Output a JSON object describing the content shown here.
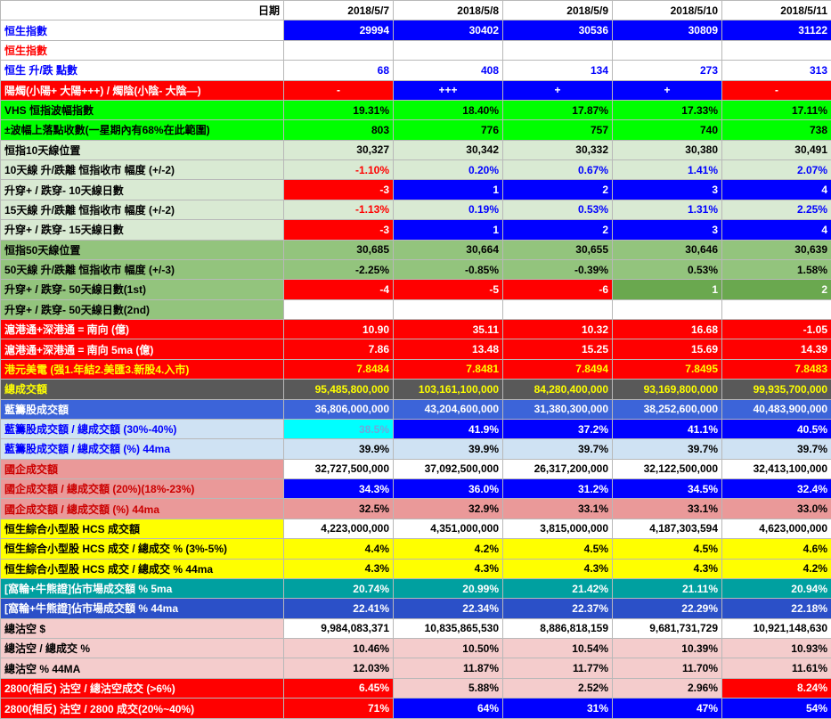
{
  "colors": {
    "white": "#ffffff",
    "black": "#000000",
    "blue": "#0000ff",
    "red": "#ff0000",
    "green": "#00ff00",
    "lgreen": "#d9ead3",
    "mgreen": "#93c47d",
    "dgreen": "#6aa84f",
    "yellow": "#ffff00",
    "gray": "#595959",
    "royal": "#3c64d9",
    "royal2": "#2b50c8",
    "lblue": "#cfe2f3",
    "cyan": "#00ffff",
    "grayblue": "#6fa8dc",
    "salmon": "#ea9999",
    "darkred": "#cc0000",
    "pink": "#f4cccc",
    "teal": "#00a0a0"
  },
  "rows": [
    {
      "name": "row-date",
      "label": "日期",
      "ls": {
        "bg": "white",
        "fg": "black",
        "align": "right"
      },
      "cs": {
        "bg": "white",
        "fg": "black"
      },
      "values": [
        "2018/5/7",
        "2018/5/8",
        "2018/5/9",
        "2018/5/10",
        "2018/5/11"
      ]
    },
    {
      "name": "row-hsi-index",
      "label": "恒生指數",
      "ls": {
        "bg": "white",
        "fg": "blue"
      },
      "cs": {
        "bg": "blue",
        "fg": "white"
      },
      "values": [
        "29994",
        "30402",
        "30536",
        "30809",
        "31122"
      ]
    },
    {
      "name": "row-hsi-index-2",
      "label": "恒生指數",
      "ls": {
        "bg": "white",
        "fg": "red"
      },
      "cs": {
        "bg": "white",
        "fg": "black"
      },
      "values": [
        "",
        "",
        "",
        "",
        ""
      ]
    },
    {
      "name": "row-hsi-change-points",
      "label": "恒生 升/跌 點數",
      "ls": {
        "bg": "white",
        "fg": "blue"
      },
      "cs": {
        "bg": "white",
        "fg": "blue"
      },
      "values": [
        "68",
        "408",
        "134",
        "273",
        "313"
      ]
    },
    {
      "name": "row-candle",
      "label": "陽燭(小陽+ 大陽+++) / 燭陰(小陰- 大陰—)",
      "ls": {
        "bg": "red",
        "fg": "white"
      },
      "cs": {
        "fg": "white",
        "align": "center"
      },
      "bgs": [
        "red",
        "blue",
        "blue",
        "blue",
        "red"
      ],
      "values": [
        "-",
        "+++",
        "+",
        "+",
        "-"
      ]
    },
    {
      "name": "row-vhs-volatility",
      "label": "VHS 恒指波幅指數",
      "ls": {
        "bg": "green",
        "fg": "black"
      },
      "cs": {
        "bg": "green",
        "fg": "black"
      },
      "values": [
        "19.31%",
        "18.40%",
        "17.87%",
        "17.33%",
        "17.11%"
      ]
    },
    {
      "name": "row-range-points",
      "label": "±波幅上落點收數(一星期內有68%在此範圍)",
      "ls": {
        "bg": "green",
        "fg": "black"
      },
      "cs": {
        "bg": "green",
        "fg": "black"
      },
      "values": [
        "803",
        "776",
        "757",
        "740",
        "738"
      ]
    },
    {
      "name": "row-ma10-position",
      "label": "恒指10天線位置",
      "ls": {
        "bg": "lgreen",
        "fg": "black"
      },
      "cs": {
        "bg": "lgreen",
        "fg": "black"
      },
      "values": [
        "30,327",
        "30,342",
        "30,332",
        "30,380",
        "30,491"
      ]
    },
    {
      "name": "row-ma10-gap",
      "label": "10天線 升/跌離 恒指收市 幅度 (+/-2)",
      "ls": {
        "bg": "lgreen",
        "fg": "black"
      },
      "cs": {
        "bg": "lgreen"
      },
      "fgs": [
        "red",
        "blue",
        "blue",
        "blue",
        "blue"
      ],
      "values": [
        "-1.10%",
        "0.20%",
        "0.67%",
        "1.41%",
        "2.07%"
      ]
    },
    {
      "name": "row-ma10-days",
      "label": "升穿+ / 跌穿- 10天線日數",
      "ls": {
        "bg": "lgreen",
        "fg": "black"
      },
      "cs": {
        "fg": "white"
      },
      "bgs": [
        "red",
        "blue",
        "blue",
        "blue",
        "blue"
      ],
      "values": [
        "-3",
        "1",
        "2",
        "3",
        "4"
      ]
    },
    {
      "name": "row-ma15-gap",
      "label": "15天線 升/跌離 恒指收市 幅度 (+/-2)",
      "ls": {
        "bg": "lgreen",
        "fg": "black"
      },
      "cs": {
        "bg": "lgreen"
      },
      "fgs": [
        "red",
        "blue",
        "blue",
        "blue",
        "blue"
      ],
      "values": [
        "-1.13%",
        "0.19%",
        "0.53%",
        "1.31%",
        "2.25%"
      ]
    },
    {
      "name": "row-ma15-days",
      "label": "升穿+ / 跌穿- 15天線日數",
      "ls": {
        "bg": "lgreen",
        "fg": "black"
      },
      "cs": {
        "fg": "white"
      },
      "bgs": [
        "red",
        "blue",
        "blue",
        "blue",
        "blue"
      ],
      "values": [
        "-3",
        "1",
        "2",
        "3",
        "4"
      ]
    },
    {
      "name": "row-ma50-position",
      "label": "恒指50天線位置",
      "ls": {
        "bg": "mgreen",
        "fg": "black"
      },
      "cs": {
        "bg": "mgreen",
        "fg": "black"
      },
      "values": [
        "30,685",
        "30,664",
        "30,655",
        "30,646",
        "30,639"
      ]
    },
    {
      "name": "row-ma50-gap",
      "label": "50天線 升/跌離 恒指收市 幅度 (+/-3)",
      "ls": {
        "bg": "mgreen",
        "fg": "black"
      },
      "cs": {
        "bg": "mgreen",
        "fg": "black"
      },
      "values": [
        "-2.25%",
        "-0.85%",
        "-0.39%",
        "0.53%",
        "1.58%"
      ]
    },
    {
      "name": "row-ma50-days-1st",
      "label": "升穿+ / 跌穿- 50天線日數(1st)",
      "ls": {
        "bg": "mgreen",
        "fg": "black"
      },
      "cs": {
        "fg": "white"
      },
      "bgs": [
        "red",
        "red",
        "red",
        "dgreen",
        "dgreen"
      ],
      "values": [
        "-4",
        "-5",
        "-6",
        "1",
        "2"
      ]
    },
    {
      "name": "row-ma50-days-2nd",
      "label": "升穿+ / 跌穿- 50天線日數(2nd)",
      "ls": {
        "bg": "mgreen",
        "fg": "black"
      },
      "cs": {
        "bg": "white",
        "fg": "black"
      },
      "values": [
        "",
        "",
        "",
        "",
        ""
      ]
    },
    {
      "name": "row-southbound",
      "label": "滬港通+深港通 = 南向 (億)",
      "ls": {
        "bg": "red",
        "fg": "white"
      },
      "cs": {
        "bg": "red",
        "fg": "white"
      },
      "values": [
        "10.90",
        "35.11",
        "10.32",
        "16.68",
        "-1.05"
      ]
    },
    {
      "name": "row-southbound-5ma",
      "label": "滬港通+深港通 = 南向 5ma (億)",
      "ls": {
        "bg": "red",
        "fg": "white"
      },
      "cs": {
        "bg": "red",
        "fg": "white"
      },
      "values": [
        "7.86",
        "13.48",
        "15.25",
        "15.69",
        "14.39"
      ]
    },
    {
      "name": "row-usdhkd",
      "label": "港元美電 (强1.年結2.美匯3.新股4.入市)",
      "ls": {
        "bg": "red",
        "fg": "yellow"
      },
      "cs": {
        "bg": "red",
        "fg": "yellow"
      },
      "values": [
        "7.8484",
        "7.8481",
        "7.8494",
        "7.8495",
        "7.8483"
      ]
    },
    {
      "name": "row-total-turnover",
      "label": "總成交額",
      "ls": {
        "bg": "gray",
        "fg": "yellow"
      },
      "cs": {
        "bg": "gray",
        "fg": "yellow"
      },
      "values": [
        "95,485,800,000",
        "103,161,100,000",
        "84,280,400,000",
        "93,169,800,000",
        "99,935,700,000"
      ]
    },
    {
      "name": "row-bluechip-turnover",
      "label": "藍籌股成交額",
      "ls": {
        "bg": "royal",
        "fg": "white"
      },
      "cs": {
        "bg": "royal",
        "fg": "white"
      },
      "values": [
        "36,806,000,000",
        "43,204,600,000",
        "31,380,300,000",
        "38,252,600,000",
        "40,483,900,000"
      ]
    },
    {
      "name": "row-bluechip-ratio",
      "label": "藍籌股成交額 / 總成交額 (30%-40%)",
      "ls": {
        "bg": "lblue",
        "fg": "blue"
      },
      "cs": {
        "fg": "white"
      },
      "bgs": [
        "cyan",
        "blue",
        "blue",
        "blue",
        "blue"
      ],
      "fgs": [
        "grayblue",
        "white",
        "white",
        "white",
        "white"
      ],
      "values": [
        "38.5%",
        "41.9%",
        "37.2%",
        "41.1%",
        "40.5%"
      ]
    },
    {
      "name": "row-bluechip-ratio-44ma",
      "label": "藍籌股成交額 / 總成交額 (%) 44ma",
      "ls": {
        "bg": "lblue",
        "fg": "blue"
      },
      "cs": {
        "bg": "lblue",
        "fg": "black"
      },
      "values": [
        "39.9%",
        "39.9%",
        "39.7%",
        "39.7%",
        "39.7%"
      ]
    },
    {
      "name": "row-hshare-turnover",
      "label": "國企成交額",
      "ls": {
        "bg": "salmon",
        "fg": "darkred"
      },
      "cs": {
        "bg": "white",
        "fg": "black"
      },
      "values": [
        "32,727,500,000",
        "37,092,500,000",
        "26,317,200,000",
        "32,122,500,000",
        "32,413,100,000"
      ]
    },
    {
      "name": "row-hshare-ratio",
      "label": "國企成交額 / 總成交額 (20%)(18%-23%)",
      "ls": {
        "bg": "salmon",
        "fg": "darkred"
      },
      "cs": {
        "bg": "blue",
        "fg": "white"
      },
      "values": [
        "34.3%",
        "36.0%",
        "31.2%",
        "34.5%",
        "32.4%"
      ]
    },
    {
      "name": "row-hshare-ratio-44ma",
      "label": "國企成交額 / 總成交額 (%) 44ma",
      "ls": {
        "bg": "salmon",
        "fg": "darkred"
      },
      "cs": {
        "bg": "salmon",
        "fg": "black"
      },
      "values": [
        "32.5%",
        "32.9%",
        "33.1%",
        "33.1%",
        "33.0%"
      ]
    },
    {
      "name": "row-hcs-turnover",
      "label": "恒生綜合小型股 HCS 成交額",
      "ls": {
        "bg": "yellow",
        "fg": "black"
      },
      "cs": {
        "bg": "white",
        "fg": "black"
      },
      "values": [
        "4,223,000,000",
        "4,351,000,000",
        "3,815,000,000",
        "4,187,303,594",
        "4,623,000,000"
      ]
    },
    {
      "name": "row-hcs-ratio",
      "label": "恒生綜合小型股 HCS 成交 / 總成交 % (3%-5%)",
      "ls": {
        "bg": "yellow",
        "fg": "black"
      },
      "cs": {
        "bg": "yellow",
        "fg": "black"
      },
      "values": [
        "4.4%",
        "4.2%",
        "4.5%",
        "4.5%",
        "4.6%"
      ]
    },
    {
      "name": "row-hcs-ratio-44ma",
      "label": "恒生綜合小型股 HCS 成交 / 總成交 % 44ma",
      "ls": {
        "bg": "yellow",
        "fg": "black"
      },
      "cs": {
        "bg": "yellow",
        "fg": "black"
      },
      "values": [
        "4.3%",
        "4.3%",
        "4.3%",
        "4.3%",
        "4.2%"
      ]
    },
    {
      "name": "row-warrants-5ma",
      "label": "[窩輪+牛熊證]佔市場成交額 % 5ma",
      "ls": {
        "bg": "teal",
        "fg": "white"
      },
      "cs": {
        "bg": "teal",
        "fg": "white"
      },
      "values": [
        "20.74%",
        "20.99%",
        "21.42%",
        "21.11%",
        "20.94%"
      ]
    },
    {
      "name": "row-warrants-44ma",
      "label": "[窩輪+牛熊證]佔市場成交額 % 44ma",
      "ls": {
        "bg": "royal2",
        "fg": "white"
      },
      "cs": {
        "bg": "royal2",
        "fg": "white"
      },
      "values": [
        "22.41%",
        "22.34%",
        "22.37%",
        "22.29%",
        "22.18%"
      ]
    },
    {
      "name": "row-short-total",
      "label": "總沽空 $",
      "ls": {
        "bg": "pink",
        "fg": "black"
      },
      "cs": {
        "bg": "white",
        "fg": "black"
      },
      "values": [
        "9,984,083,371",
        "10,835,865,530",
        "8,886,818,159",
        "9,681,731,729",
        "10,921,148,630"
      ]
    },
    {
      "name": "row-short-ratio",
      "label": "總沽空 / 總成交 %",
      "ls": {
        "bg": "pink",
        "fg": "black"
      },
      "cs": {
        "bg": "pink",
        "fg": "black"
      },
      "values": [
        "10.46%",
        "10.50%",
        "10.54%",
        "10.39%",
        "10.93%"
      ]
    },
    {
      "name": "row-short-44ma",
      "label": "總沽空 % 44MA",
      "ls": {
        "bg": "pink",
        "fg": "black"
      },
      "cs": {
        "bg": "pink",
        "fg": "black"
      },
      "values": [
        "12.03%",
        "11.87%",
        "11.77%",
        "11.70%",
        "11.61%"
      ]
    },
    {
      "name": "row-2800-short-of-total",
      "label": "2800(相反) 沽空 / 總沽空成交 (>6%)",
      "ls": {
        "bg": "red",
        "fg": "white"
      },
      "cs": {},
      "bgs": [
        "red",
        "pink",
        "pink",
        "pink",
        "red"
      ],
      "fgs": [
        "white",
        "black",
        "black",
        "black",
        "white"
      ],
      "values": [
        "6.45%",
        "5.88%",
        "2.52%",
        "2.96%",
        "8.24%"
      ]
    },
    {
      "name": "row-2800-short-of-2800",
      "label": "2800(相反) 沽空 / 2800 成交(20%~40%)",
      "ls": {
        "bg": "red",
        "fg": "white"
      },
      "cs": {
        "fg": "white"
      },
      "bgs": [
        "red",
        "blue",
        "blue",
        "blue",
        "blue"
      ],
      "values": [
        "71%",
        "64%",
        "31%",
        "47%",
        "54%"
      ]
    }
  ]
}
